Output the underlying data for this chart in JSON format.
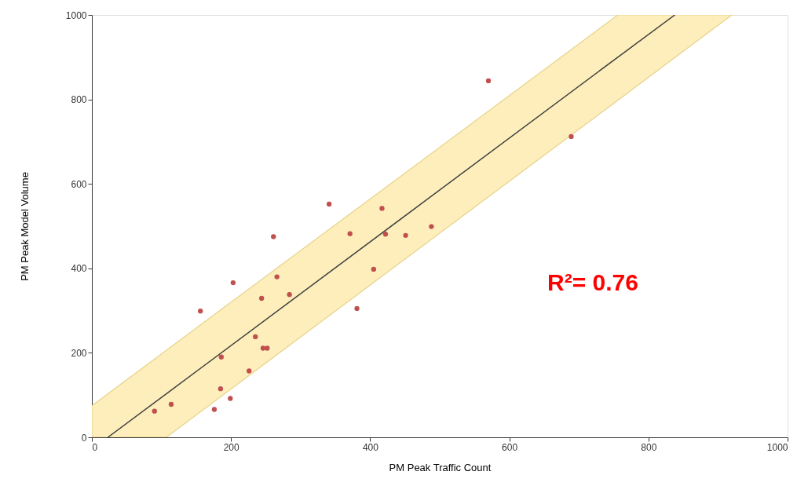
{
  "chart_data": {
    "type": "scatter",
    "xlabel": "PM Peak Traffic Count",
    "ylabel": "PM Peak Model Volume",
    "xlim": [
      0,
      1000
    ],
    "ylim": [
      0,
      1000
    ],
    "xticks": [
      0,
      200,
      400,
      600,
      800,
      1000
    ],
    "yticks": [
      0,
      200,
      400,
      600,
      800,
      1000
    ],
    "grid": false,
    "series": [
      {
        "type": "line",
        "color": "#404040",
        "line_style": "solid",
        "x": [
          0,
          23,
          107,
          756,
          838,
          920
        ],
        "values": [
          null,
          0,
          103,
          900,
          1000,
          null
        ],
        "lower": [
          0,
          0,
          0,
          798,
          899,
          1000
        ],
        "upper": [
          75,
          103,
          206,
          1000,
          1000,
          1000
        ]
      },
      {
        "color": "#c0504d",
        "marker": "circle",
        "x": [
          90,
          114,
          176,
          199,
          185,
          226,
          186,
          235,
          246,
          252,
          244,
          284,
          266,
          203,
          156,
          261,
          341,
          371,
          381,
          405,
          417,
          422,
          451,
          488,
          570,
          689
        ],
        "values": [
          62,
          78,
          66,
          92,
          115,
          157,
          190,
          238,
          211,
          211,
          329,
          338,
          380,
          366,
          299,
          475,
          552,
          482,
          305,
          398,
          542,
          481,
          478,
          499,
          844,
          712
        ]
      }
    ],
    "annotations": [
      "R²= 0.76"
    ]
  }
}
